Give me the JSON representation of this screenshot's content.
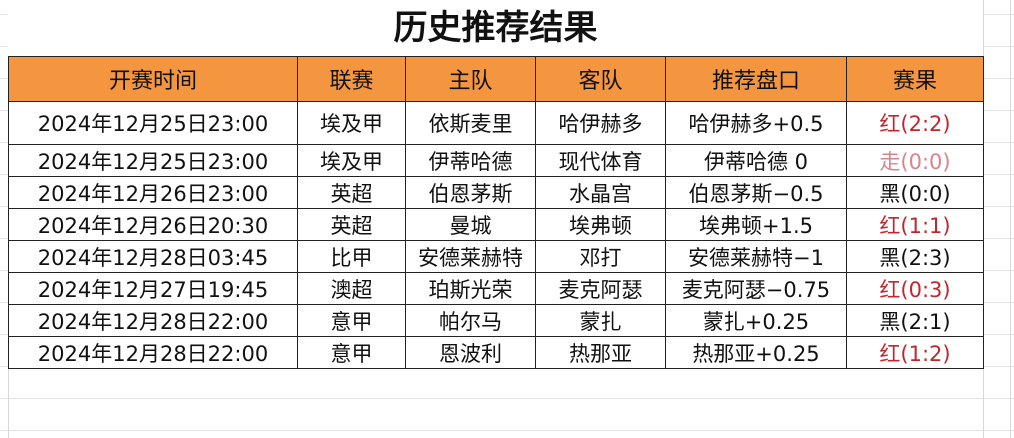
{
  "title": "历史推荐结果",
  "columns": [
    "开赛时间",
    "联赛",
    "主队",
    "客队",
    "推荐盘口",
    "赛果"
  ],
  "colors": {
    "header_bg": "#f4963f",
    "red": "#c0282d",
    "push": "#d6868a",
    "black": "#111111"
  },
  "rows": [
    {
      "time": "2024年12月25日23:00",
      "league": "埃及甲",
      "home": "依斯麦里",
      "away": "哈伊赫多",
      "pick": "哈伊赫多+0.5",
      "result": "红(2:2)",
      "status": "red"
    },
    {
      "time": "2024年12月25日23:00",
      "league": "埃及甲",
      "home": "伊蒂哈德",
      "away": "现代体育",
      "pick": "伊蒂哈德 0",
      "result": "走(0:0)",
      "status": "pale"
    },
    {
      "time": "2024年12月26日23:00",
      "league": "英超",
      "home": "伯恩茅斯",
      "away": "水晶宫",
      "pick": "伯恩茅斯−0.5",
      "result": "黑(0:0)",
      "status": "black"
    },
    {
      "time": "2024年12月26日20:30",
      "league": "英超",
      "home": "曼城",
      "away": "埃弗顿",
      "pick": "埃弗顿+1.5",
      "result": "红(1:1)",
      "status": "red"
    },
    {
      "time": "2024年12月28日03:45",
      "league": "比甲",
      "home": "安德莱赫特",
      "away": "邓打",
      "pick": "安德莱赫特−1",
      "result": "黑(2:3)",
      "status": "black"
    },
    {
      "time": "2024年12月27日19:45",
      "league": "澳超",
      "home": "珀斯光荣",
      "away": "麦克阿瑟",
      "pick": "麦克阿瑟−0.75",
      "result": "红(0:3)",
      "status": "red"
    },
    {
      "time": "2024年12月28日22:00",
      "league": "意甲",
      "home": "帕尔马",
      "away": "蒙扎",
      "pick": "蒙扎+0.25",
      "result": "黑(2:1)",
      "status": "black"
    },
    {
      "time": "2024年12月28日22:00",
      "league": "意甲",
      "home": "恩波利",
      "away": "热那亚",
      "pick": "热那亚+0.25",
      "result": "红(1:2)",
      "status": "red"
    }
  ]
}
